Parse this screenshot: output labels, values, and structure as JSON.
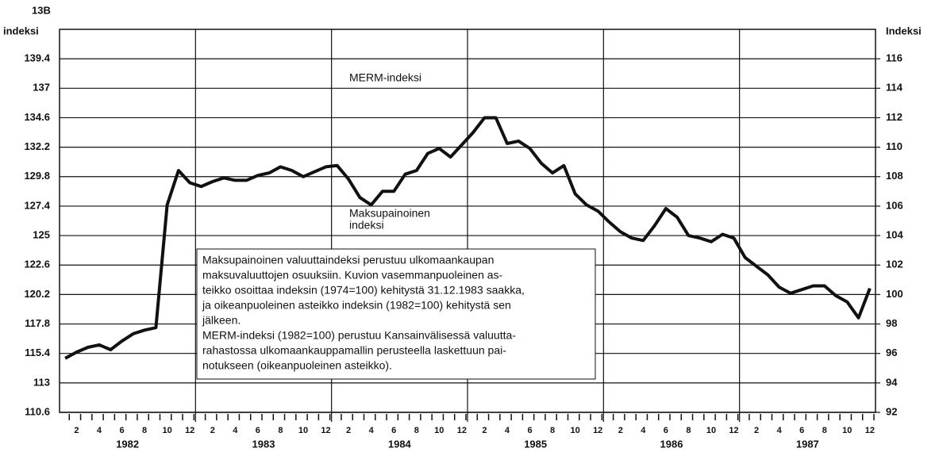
{
  "chart_data": {
    "type": "line",
    "corner_label": "13B",
    "ylabel": "indeksi",
    "y2label": "Indeksi",
    "ylim": [
      110.6,
      141.8
    ],
    "yticks": [
      110.6,
      113.0,
      115.4,
      117.8,
      120.2,
      122.6,
      125.0,
      127.4,
      129.8,
      132.2,
      134.6,
      137.0,
      139.4
    ],
    "y2lim": [
      92,
      118
    ],
    "y2ticks": [
      92,
      94,
      96,
      98,
      100,
      102,
      104,
      106,
      108,
      110,
      112,
      114,
      116
    ],
    "grid": true,
    "color": "#111111",
    "categories": [
      null,
      "2",
      null,
      "4",
      null,
      "6",
      null,
      "8",
      null,
      "10",
      null,
      "12",
      null,
      "2",
      null,
      "4",
      null,
      "6",
      null,
      "8",
      null,
      "10",
      null,
      "12",
      null,
      "2",
      null,
      "4",
      null,
      "6",
      null,
      "8",
      null,
      "10",
      null,
      "12",
      null,
      "2",
      null,
      "4",
      null,
      "6",
      null,
      "8",
      null,
      "10",
      null,
      "12",
      null,
      "2",
      null,
      "4",
      null,
      "6",
      null,
      "8",
      null,
      "10",
      null,
      "12",
      null,
      "2",
      null,
      "4",
      null,
      "6",
      null,
      "8",
      null,
      "10",
      null,
      "12"
    ],
    "years": [
      "1982",
      "1983",
      "1984",
      "1985",
      "1986",
      "1987"
    ],
    "values": [
      115.0,
      115.5,
      115.9,
      116.1,
      115.7,
      116.4,
      117.0,
      117.3,
      117.5,
      127.5,
      130.3,
      129.3,
      129.0,
      129.4,
      129.7,
      129.5,
      129.5,
      129.9,
      130.1,
      130.6,
      130.3,
      129.8,
      130.2,
      130.6,
      130.7,
      129.6,
      128.1,
      127.5,
      128.6,
      128.6,
      130.0,
      130.3,
      131.7,
      132.1,
      131.4,
      132.4,
      133.4,
      134.6,
      134.6,
      132.5,
      132.7,
      132.1,
      130.9,
      130.1,
      130.7,
      128.4,
      127.5,
      127.0,
      126.1,
      125.3,
      124.8,
      124.6,
      125.8,
      127.2,
      126.5,
      125.0,
      124.8,
      124.5,
      125.1,
      124.8,
      123.2,
      122.5,
      121.8,
      120.8,
      120.3,
      120.6,
      120.9,
      120.9,
      120.1,
      119.6,
      118.3,
      120.7
    ],
    "annotations": [
      [
        "MERM-indeksi"
      ],
      [
        "Maksupainoinen",
        "indeksi"
      ]
    ],
    "note_lines": [
      "Maksupainoinen valuuttaindeksi perustuu ulkomaankaupan",
      "maksuvaluuttojen osuuksiin. Kuvion vasemmanpuoleinen as-",
      "teikko osoittaa indeksin (1974=100) kehitystä 31.12.1983 saakka,",
      "ja oikeanpuoleinen asteikko indeksin (1982=100) kehitystä sen",
      "jälkeen.",
      "MERM-indeksi (1982=100) perustuu Kansainvälisessä valuutta-",
      "rahastossa ulkomaankauppamallin perusteella laskettuun pai-",
      "notukseen (oikeanpuoleinen asteikko)."
    ]
  }
}
